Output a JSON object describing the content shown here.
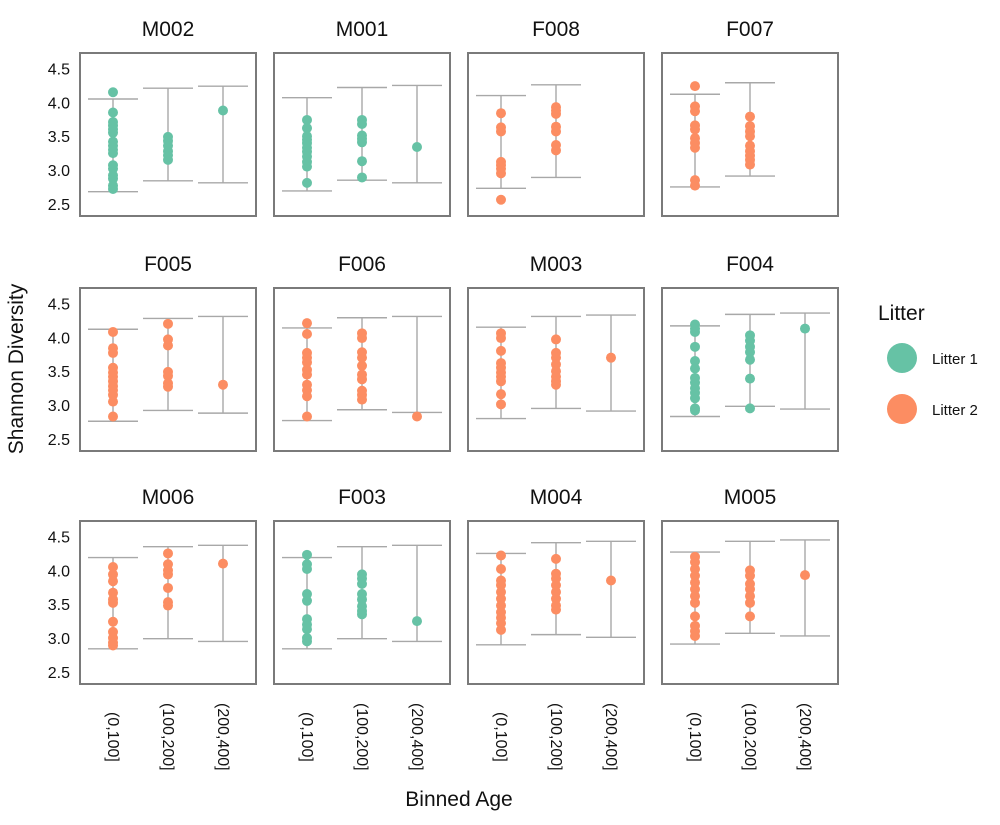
{
  "chart_data": {
    "type": "scatter",
    "subtype": "faceted strip plot with min-max whisker intervals",
    "ylabel": "Shannon Diversity",
    "xlabel": "Binned Age",
    "categories": [
      "(0,100]",
      "(100,200]",
      "(200,400]"
    ],
    "yticks": [
      "2.5",
      "3.0",
      "3.5",
      "4.0",
      "4.5"
    ],
    "ylim": [
      2.32,
      4.73
    ],
    "grid": false,
    "legend": {
      "title": "Litter",
      "placement": "right",
      "entries": [
        {
          "label": "Litter 1",
          "key": "L1",
          "color": "#66c2a5"
        },
        {
          "label": "Litter 2",
          "key": "L2",
          "color": "#fc8d62"
        }
      ]
    },
    "facets": [
      {
        "title": "M002",
        "litter": "L1",
        "whiskers": [
          [
            2.68,
            4.05
          ],
          [
            2.84,
            4.21
          ],
          [
            2.81,
            4.24
          ]
        ],
        "points": [
          [
            4.15,
            3.85,
            3.71,
            3.66,
            3.6,
            3.55,
            3.42,
            3.36,
            3.3,
            3.25,
            3.07,
            3.02,
            2.92,
            2.87,
            2.77,
            2.72
          ],
          [
            3.49,
            3.43,
            3.36,
            3.28,
            3.22,
            3.15
          ],
          [
            3.88
          ]
        ]
      },
      {
        "title": "M001",
        "litter": "L1",
        "whiskers": [
          [
            2.69,
            4.07
          ],
          [
            2.85,
            4.22
          ],
          [
            2.81,
            4.25
          ]
        ],
        "points": [
          [
            3.74,
            3.62,
            3.5,
            3.45,
            3.4,
            3.33,
            3.27,
            3.2,
            3.12,
            3.05,
            2.81
          ],
          [
            3.74,
            3.68,
            3.51,
            3.46,
            3.41,
            3.13,
            2.89
          ],
          [
            3.34
          ]
        ]
      },
      {
        "title": "F008",
        "litter": "L2",
        "whiskers": [
          [
            2.73,
            4.1
          ],
          [
            2.89,
            4.26
          ],
          null
        ],
        "points": [
          [
            3.84,
            3.63,
            3.57,
            3.12,
            3.07,
            3.02,
            2.95,
            2.56
          ],
          [
            3.93,
            3.88,
            3.83,
            3.64,
            3.57,
            3.37,
            3.29
          ],
          []
        ]
      },
      {
        "title": "F007",
        "litter": "L2",
        "whiskers": [
          [
            2.75,
            4.12
          ],
          [
            2.91,
            4.29
          ],
          null
        ],
        "points": [
          [
            4.24,
            3.94,
            3.87,
            3.66,
            3.6,
            3.47,
            3.4,
            3.33,
            2.85,
            2.77
          ],
          [
            3.79,
            3.65,
            3.57,
            3.5,
            3.36,
            3.28,
            3.21,
            3.15,
            3.08
          ],
          []
        ]
      },
      {
        "title": "F005",
        "litter": "L2",
        "whiskers": [
          [
            2.76,
            4.12
          ],
          [
            2.92,
            4.28
          ],
          [
            2.88,
            4.31
          ]
        ],
        "points": [
          [
            4.08,
            3.84,
            3.77,
            3.55,
            3.48,
            3.42,
            3.35,
            3.28,
            3.22,
            3.15,
            3.05,
            2.83
          ],
          [
            4.2,
            3.97,
            3.88,
            3.49,
            3.43,
            3.32,
            3.27
          ],
          [
            3.3
          ]
        ]
      },
      {
        "title": "F006",
        "litter": "L2",
        "whiskers": [
          [
            2.77,
            4.14
          ],
          [
            2.93,
            4.29
          ],
          [
            2.89,
            4.31
          ]
        ],
        "points": [
          [
            4.21,
            4.05,
            3.77,
            3.7,
            3.63,
            3.52,
            3.45,
            3.3,
            3.22,
            3.13,
            2.83
          ],
          [
            4.06,
            3.99,
            3.78,
            3.7,
            3.58,
            3.45,
            3.38,
            3.21,
            3.15,
            3.08
          ],
          [
            2.83
          ]
        ]
      },
      {
        "title": "M003",
        "litter": "L2",
        "whiskers": [
          [
            2.8,
            4.15
          ],
          [
            2.95,
            4.31
          ],
          [
            2.91,
            4.33
          ]
        ],
        "points": [
          [
            4.06,
            3.99,
            3.8,
            3.62,
            3.55,
            3.48,
            3.42,
            3.35,
            3.16,
            3.01
          ],
          [
            3.97,
            3.77,
            3.7,
            3.6,
            3.5,
            3.42,
            3.35,
            3.3
          ],
          [
            3.7
          ]
        ]
      },
      {
        "title": "F004",
        "litter": "L1",
        "whiskers": [
          [
            2.83,
            4.17
          ],
          [
            2.98,
            4.34
          ],
          [
            2.94,
            4.36
          ]
        ],
        "points": [
          [
            4.19,
            4.13,
            4.08,
            3.86,
            3.65,
            3.54,
            3.4,
            3.33,
            3.25,
            3.18,
            3.1,
            2.95,
            2.92
          ],
          [
            4.03,
            3.95,
            3.86,
            3.78,
            3.67,
            3.39,
            2.95
          ],
          [
            4.13
          ]
        ]
      },
      {
        "title": "M006",
        "litter": "L2",
        "whiskers": [
          [
            2.84,
            4.19
          ],
          [
            2.99,
            4.35
          ],
          [
            2.95,
            4.37
          ]
        ],
        "points": [
          [
            4.05,
            3.94,
            3.84,
            3.67,
            3.57,
            3.52,
            3.24,
            3.09,
            3.0,
            2.93,
            2.89
          ],
          [
            4.25,
            4.09,
            4.0,
            3.94,
            3.74,
            3.53,
            3.48
          ],
          [
            4.1
          ]
        ]
      },
      {
        "title": "F003",
        "litter": "L1",
        "whiskers": [
          [
            2.84,
            4.19
          ],
          [
            2.99,
            4.35
          ],
          [
            2.95,
            4.37
          ]
        ],
        "points": [
          [
            4.23,
            4.09,
            4.02,
            3.65,
            3.55,
            3.28,
            3.2,
            3.13,
            3.0,
            2.95
          ],
          [
            3.94,
            3.88,
            3.8,
            3.65,
            3.57,
            3.47,
            3.4,
            3.35
          ],
          [
            3.25
          ]
        ]
      },
      {
        "title": "M004",
        "litter": "L2",
        "whiskers": [
          [
            2.9,
            4.25
          ],
          [
            3.05,
            4.41
          ],
          [
            3.01,
            4.43
          ]
        ],
        "points": [
          [
            4.22,
            4.02,
            3.85,
            3.78,
            3.68,
            3.58,
            3.48,
            3.38,
            3.3,
            3.22,
            3.12
          ],
          [
            4.17,
            3.95,
            3.88,
            3.78,
            3.68,
            3.58,
            3.48,
            3.42
          ],
          [
            3.85
          ]
        ]
      },
      {
        "title": "M005",
        "litter": "L2",
        "whiskers": [
          [
            2.91,
            4.27
          ],
          [
            3.07,
            4.43
          ],
          [
            3.03,
            4.45
          ]
        ],
        "points": [
          [
            4.2,
            4.12,
            4.02,
            3.92,
            3.82,
            3.72,
            3.62,
            3.52,
            3.32,
            3.18,
            3.1,
            3.03
          ],
          [
            4.0,
            3.92,
            3.8,
            3.72,
            3.62,
            3.52,
            3.32
          ],
          [
            3.93
          ]
        ]
      }
    ]
  }
}
